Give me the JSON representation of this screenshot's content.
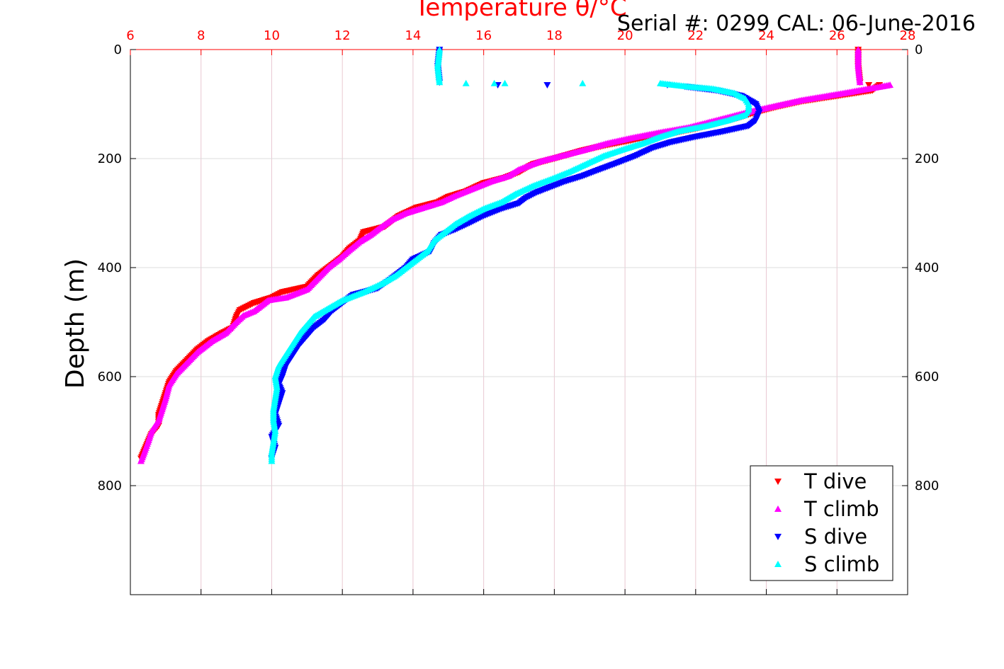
{
  "chart_data": {
    "type": "scatter",
    "title": "Temperature θ/°C",
    "annotation": "Serial #: 0299 CAL: 06-June-2016",
    "xlabel": "Temperature θ/°C",
    "ylabel": "Depth (m)",
    "xlim": [
      6,
      28
    ],
    "ylim": [
      0,
      1000
    ],
    "y_reversed": true,
    "x_axis_position": "top",
    "x_ticks": [
      6,
      8,
      10,
      12,
      14,
      16,
      18,
      20,
      22,
      24,
      26,
      28
    ],
    "y_ticks": [
      0,
      200,
      400,
      600,
      800
    ],
    "grid": true,
    "legend_position": "bottom-right",
    "colors": {
      "axis_x": "#ff0000",
      "t_dive": "#ff0000",
      "t_climb": "#ff00ff",
      "s_dive": "#0000ff",
      "s_climb": "#00ffff"
    },
    "series": [
      {
        "name": "T dive",
        "marker": "triangle-down",
        "color": "#ff0000",
        "points": [
          [
            26.6,
            0
          ],
          [
            26.6,
            30
          ],
          [
            26.65,
            60
          ],
          [
            26.9,
            65
          ],
          [
            27.2,
            65
          ],
          [
            27.0,
            75
          ],
          [
            26.0,
            85
          ],
          [
            25.0,
            95
          ],
          [
            24.3,
            105
          ],
          [
            23.7,
            115
          ],
          [
            23.2,
            125
          ],
          [
            22.6,
            135
          ],
          [
            22.0,
            145
          ],
          [
            21.2,
            155
          ],
          [
            20.3,
            165
          ],
          [
            19.5,
            175
          ],
          [
            18.8,
            185
          ],
          [
            18.0,
            200
          ],
          [
            17.4,
            210
          ],
          [
            17.0,
            225
          ],
          [
            16.6,
            235
          ],
          [
            16.0,
            245
          ],
          [
            15.5,
            260
          ],
          [
            15.0,
            270
          ],
          [
            14.7,
            280
          ],
          [
            14.1,
            290
          ],
          [
            13.6,
            305
          ],
          [
            13.2,
            325
          ],
          [
            12.6,
            335
          ],
          [
            12.5,
            350
          ],
          [
            12.2,
            365
          ],
          [
            12.0,
            380
          ],
          [
            11.7,
            395
          ],
          [
            11.3,
            415
          ],
          [
            11.0,
            435
          ],
          [
            10.3,
            445
          ],
          [
            10.0,
            455
          ],
          [
            9.5,
            465
          ],
          [
            9.1,
            478
          ],
          [
            9.0,
            490
          ],
          [
            8.9,
            510
          ],
          [
            8.6,
            520
          ],
          [
            8.2,
            535
          ],
          [
            7.9,
            550
          ],
          [
            7.6,
            570
          ],
          [
            7.3,
            590
          ],
          [
            7.1,
            610
          ],
          [
            7.0,
            630
          ],
          [
            6.9,
            650
          ],
          [
            6.8,
            670
          ],
          [
            6.8,
            690
          ],
          [
            6.6,
            705
          ],
          [
            6.5,
            720
          ],
          [
            6.4,
            735
          ],
          [
            6.3,
            750
          ]
        ]
      },
      {
        "name": "T climb",
        "marker": "triangle-up",
        "color": "#ff00ff",
        "points": [
          [
            26.6,
            0
          ],
          [
            26.6,
            30
          ],
          [
            26.65,
            60
          ],
          [
            27.5,
            65
          ],
          [
            26.2,
            80
          ],
          [
            25.0,
            93
          ],
          [
            24.3,
            103
          ],
          [
            23.6,
            113
          ],
          [
            23.0,
            123
          ],
          [
            22.4,
            133
          ],
          [
            21.8,
            143
          ],
          [
            21.0,
            152
          ],
          [
            20.2,
            162
          ],
          [
            19.5,
            172
          ],
          [
            18.8,
            185
          ],
          [
            18.2,
            195
          ],
          [
            17.6,
            205
          ],
          [
            17.0,
            220
          ],
          [
            16.7,
            232
          ],
          [
            16.2,
            242
          ],
          [
            15.7,
            255
          ],
          [
            15.2,
            268
          ],
          [
            14.8,
            280
          ],
          [
            14.3,
            290
          ],
          [
            13.8,
            300
          ],
          [
            13.4,
            312
          ],
          [
            13.0,
            330
          ],
          [
            12.8,
            340
          ],
          [
            12.5,
            352
          ],
          [
            12.2,
            368
          ],
          [
            11.9,
            385
          ],
          [
            11.6,
            400
          ],
          [
            11.3,
            420
          ],
          [
            11.0,
            440
          ],
          [
            10.4,
            455
          ],
          [
            9.9,
            460
          ],
          [
            9.7,
            470
          ],
          [
            9.5,
            480
          ],
          [
            9.2,
            488
          ],
          [
            9.0,
            500
          ],
          [
            8.7,
            520
          ],
          [
            8.3,
            535
          ],
          [
            7.9,
            555
          ],
          [
            7.6,
            575
          ],
          [
            7.3,
            595
          ],
          [
            7.1,
            615
          ],
          [
            7.0,
            640
          ],
          [
            6.9,
            660
          ],
          [
            6.8,
            680
          ],
          [
            6.6,
            700
          ],
          [
            6.5,
            720
          ],
          [
            6.4,
            738
          ],
          [
            6.3,
            755
          ]
        ]
      },
      {
        "name": "S dive",
        "marker": "triangle-down",
        "color": "#0000ff",
        "points": [
          [
            14.75,
            0
          ],
          [
            14.7,
            30
          ],
          [
            14.75,
            60
          ],
          [
            16.4,
            65
          ],
          [
            17.8,
            65
          ],
          [
            21.2,
            65
          ],
          [
            21.7,
            68
          ],
          [
            22.6,
            75
          ],
          [
            23.3,
            85
          ],
          [
            23.7,
            100
          ],
          [
            23.8,
            115
          ],
          [
            23.7,
            130
          ],
          [
            23.5,
            140
          ],
          [
            22.8,
            150
          ],
          [
            22.0,
            160
          ],
          [
            21.3,
            170
          ],
          [
            20.8,
            180
          ],
          [
            20.3,
            195
          ],
          [
            19.7,
            210
          ],
          [
            19.2,
            222
          ],
          [
            18.8,
            232
          ],
          [
            18.3,
            242
          ],
          [
            17.9,
            252
          ],
          [
            17.5,
            262
          ],
          [
            17.2,
            272
          ],
          [
            17.0,
            282
          ],
          [
            16.5,
            292
          ],
          [
            16.0,
            305
          ],
          [
            15.6,
            318
          ],
          [
            15.2,
            330
          ],
          [
            14.8,
            340
          ],
          [
            14.6,
            355
          ],
          [
            14.5,
            370
          ],
          [
            14.0,
            385
          ],
          [
            13.8,
            400
          ],
          [
            13.4,
            420
          ],
          [
            13.0,
            438
          ],
          [
            12.3,
            450
          ],
          [
            12.0,
            465
          ],
          [
            11.7,
            480
          ],
          [
            11.5,
            495
          ],
          [
            11.2,
            510
          ],
          [
            11.0,
            525
          ],
          [
            10.8,
            540
          ],
          [
            10.6,
            560
          ],
          [
            10.4,
            580
          ],
          [
            10.3,
            600
          ],
          [
            10.2,
            615
          ],
          [
            10.3,
            630
          ],
          [
            10.2,
            650
          ],
          [
            10.1,
            670
          ],
          [
            10.2,
            690
          ],
          [
            10.0,
            710
          ],
          [
            10.1,
            730
          ],
          [
            10.0,
            750
          ]
        ]
      },
      {
        "name": "S climb",
        "marker": "triangle-up",
        "color": "#00ffff",
        "points": [
          [
            14.75,
            0
          ],
          [
            14.7,
            30
          ],
          [
            14.75,
            60
          ],
          [
            15.5,
            62
          ],
          [
            16.3,
            62
          ],
          [
            16.6,
            62
          ],
          [
            18.8,
            62
          ],
          [
            21.0,
            62
          ],
          [
            21.8,
            68
          ],
          [
            22.5,
            72
          ],
          [
            23.1,
            80
          ],
          [
            23.4,
            90
          ],
          [
            23.5,
            100
          ],
          [
            23.5,
            110
          ],
          [
            23.4,
            120
          ],
          [
            22.9,
            130
          ],
          [
            22.3,
            140
          ],
          [
            21.5,
            150
          ],
          [
            21.0,
            160
          ],
          [
            20.5,
            172
          ],
          [
            20.0,
            182
          ],
          [
            19.4,
            195
          ],
          [
            18.9,
            210
          ],
          [
            18.4,
            225
          ],
          [
            17.9,
            238
          ],
          [
            17.4,
            250
          ],
          [
            16.9,
            265
          ],
          [
            16.5,
            280
          ],
          [
            16.0,
            292
          ],
          [
            15.6,
            305
          ],
          [
            15.2,
            320
          ],
          [
            14.9,
            335
          ],
          [
            14.6,
            350
          ],
          [
            14.4,
            370
          ],
          [
            14.1,
            385
          ],
          [
            13.8,
            400
          ],
          [
            13.5,
            415
          ],
          [
            13.1,
            430
          ],
          [
            12.6,
            445
          ],
          [
            12.0,
            460
          ],
          [
            11.6,
            475
          ],
          [
            11.2,
            490
          ],
          [
            11.0,
            505
          ],
          [
            10.8,
            520
          ],
          [
            10.6,
            540
          ],
          [
            10.4,
            560
          ],
          [
            10.2,
            580
          ],
          [
            10.1,
            600
          ],
          [
            10.15,
            620
          ],
          [
            10.1,
            640
          ],
          [
            10.05,
            660
          ],
          [
            10.05,
            680
          ],
          [
            10.1,
            700
          ],
          [
            10.05,
            720
          ],
          [
            10.0,
            740
          ],
          [
            10.0,
            755
          ]
        ]
      }
    ]
  }
}
